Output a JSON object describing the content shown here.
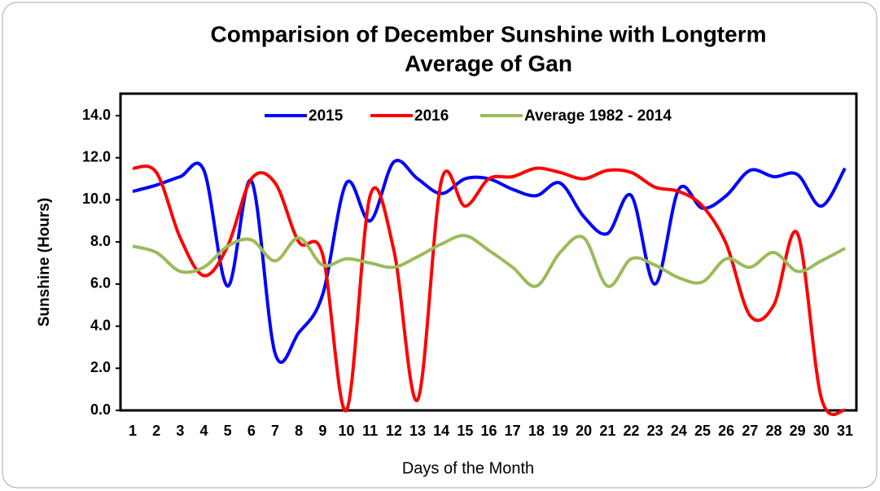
{
  "chart_data": {
    "type": "line",
    "title": "Comparision of December Sunshine with Longterm",
    "subtitle": "Average of Gan",
    "y_label": "Sunshine (Hours)",
    "x_label": "Days of the Month",
    "categories": [
      "1",
      "2",
      "3",
      "4",
      "5",
      "6",
      "7",
      "8",
      "9",
      "10",
      "11",
      "12",
      "13",
      "14",
      "15",
      "16",
      "17",
      "18",
      "19",
      "20",
      "21",
      "22",
      "23",
      "24",
      "25",
      "26",
      "27",
      "28",
      "29",
      "30",
      "31"
    ],
    "series": [
      {
        "name": "2015",
        "color": "#0000ff",
        "values": [
          10.4,
          10.7,
          11.1,
          11.4,
          5.9,
          10.9,
          2.7,
          3.7,
          5.5,
          10.8,
          9.0,
          11.8,
          11.0,
          10.3,
          11.0,
          11.0,
          10.5,
          10.2,
          10.8,
          9.2,
          8.4,
          10.2,
          6.0,
          10.5,
          9.6,
          10.2,
          11.4,
          11.1,
          11.2,
          9.7,
          11.5
        ]
      },
      {
        "name": "2016",
        "color": "#ff0000",
        "values": [
          11.5,
          11.3,
          8.2,
          6.4,
          7.8,
          11.0,
          10.8,
          8.0,
          7.4,
          0.0,
          10.2,
          7.6,
          0.5,
          10.9,
          9.7,
          11.0,
          11.1,
          11.5,
          11.3,
          11.0,
          11.4,
          11.3,
          10.6,
          10.4,
          9.7,
          7.9,
          4.5,
          5.0,
          8.4,
          0.6,
          0.0
        ]
      },
      {
        "name": "Average 1982 - 2014",
        "color": "#9bbb59",
        "values": [
          7.8,
          7.5,
          6.6,
          6.8,
          7.8,
          8.1,
          7.1,
          8.2,
          6.9,
          7.2,
          7.0,
          6.8,
          7.3,
          7.9,
          8.3,
          7.6,
          6.8,
          5.9,
          7.5,
          8.2,
          5.9,
          7.2,
          6.9,
          6.3,
          6.1,
          7.2,
          6.8,
          7.5,
          6.6,
          7.1,
          7.7
        ]
      }
    ],
    "ylim": [
      0,
      14
    ],
    "yticks": [
      {
        "value": 0,
        "label": "0.0"
      },
      {
        "value": 2,
        "label": "2.0"
      },
      {
        "value": 4,
        "label": "4.0"
      },
      {
        "value": 6,
        "label": "6.0"
      },
      {
        "value": 8,
        "label": "8.0"
      },
      {
        "value": 10,
        "label": "10.0"
      },
      {
        "value": 12,
        "label": "12.0"
      },
      {
        "value": 14,
        "label": "14.0"
      }
    ],
    "legend": "top"
  }
}
